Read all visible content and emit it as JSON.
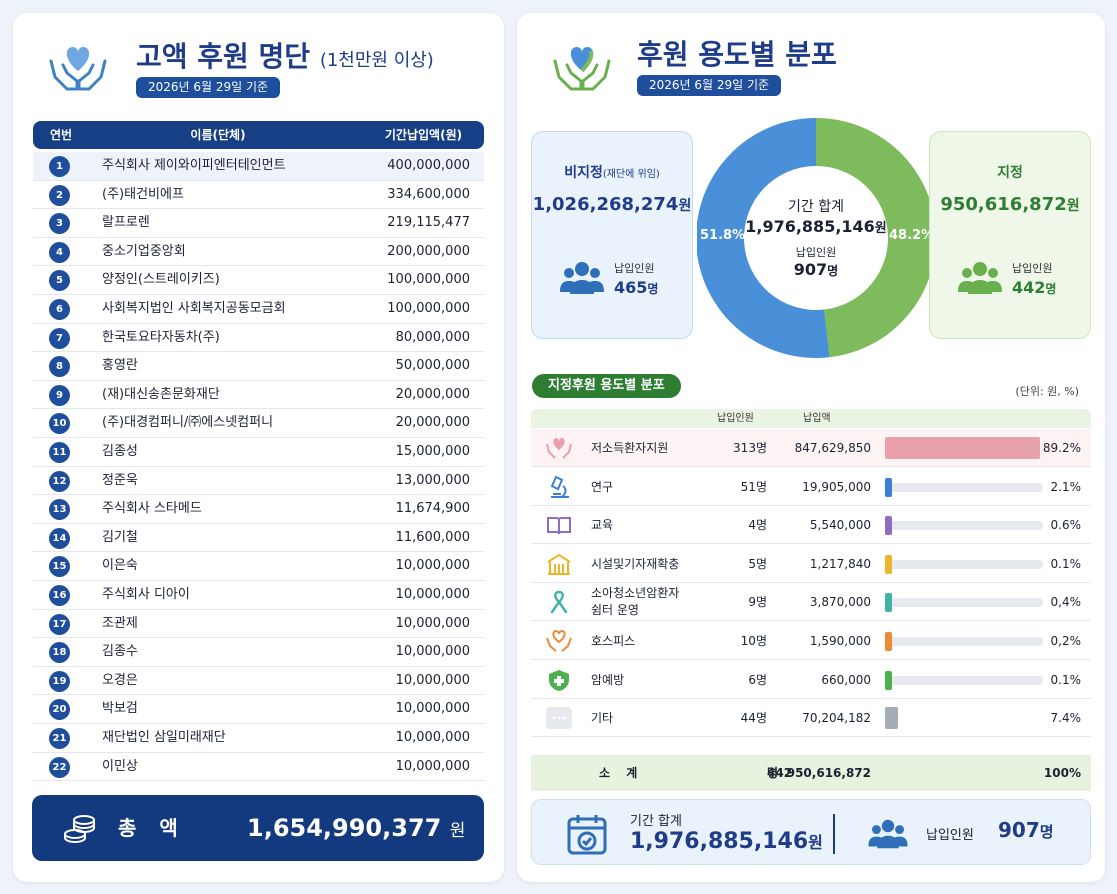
{
  "left": {
    "title": "고액 후원 명단",
    "subtitle": "(1천만원 이상)",
    "date": "2026년 6월 29일 기준",
    "headers": {
      "no": "연번",
      "name": "이름(단체)",
      "amount": "기간납입액(원)"
    },
    "rows": [
      {
        "no": "1",
        "name": "주식회사 제이와이피엔터테인먼트",
        "amount": "400,000,000"
      },
      {
        "no": "2",
        "name": "(주)태건비에프",
        "amount": "334,600,000"
      },
      {
        "no": "3",
        "name": "랄프로렌",
        "amount": "219,115,477"
      },
      {
        "no": "4",
        "name": "중소기업중앙회",
        "amount": "200,000,000"
      },
      {
        "no": "5",
        "name": "양정인(스트레이키즈)",
        "amount": "100,000,000"
      },
      {
        "no": "6",
        "name": "사회복지법인 사회복지공동모금회",
        "amount": "100,000,000"
      },
      {
        "no": "7",
        "name": "한국토요타자동차(주)",
        "amount": "80,000,000"
      },
      {
        "no": "8",
        "name": "홍영란",
        "amount": "50,000,000"
      },
      {
        "no": "9",
        "name": "(재)대신송촌문화재단",
        "amount": "20,000,000"
      },
      {
        "no": "10",
        "name": "(주)대경컴퍼니/㈜에스넷컴퍼니",
        "amount": "20,000,000"
      },
      {
        "no": "11",
        "name": "김종성",
        "amount": "15,000,000"
      },
      {
        "no": "12",
        "name": "정준욱",
        "amount": "13,000,000"
      },
      {
        "no": "13",
        "name": "주식회사 스타메드",
        "amount": "11,674,900"
      },
      {
        "no": "14",
        "name": "김기철",
        "amount": "11,600,000"
      },
      {
        "no": "15",
        "name": "이은숙",
        "amount": "10,000,000"
      },
      {
        "no": "16",
        "name": "주식회사 디아이",
        "amount": "10,000,000"
      },
      {
        "no": "17",
        "name": "조관제",
        "amount": "10,000,000"
      },
      {
        "no": "18",
        "name": "김종수",
        "amount": "10,000,000"
      },
      {
        "no": "19",
        "name": "오경은",
        "amount": "10,000,000"
      },
      {
        "no": "20",
        "name": "박보검",
        "amount": "10,000,000"
      },
      {
        "no": "21",
        "name": "재단법인 삼일미래재단",
        "amount": "10,000,000"
      },
      {
        "no": "22",
        "name": "이민상",
        "amount": "10,000,000"
      }
    ],
    "total": {
      "label": "총 액",
      "value": "1,654,990,377",
      "unit": "원"
    }
  },
  "right": {
    "title": "후원 용도별 분포",
    "date": "2026년 6월 29일 기준",
    "nondesignated": {
      "title": "비지정",
      "note": "(재단에 위임)",
      "amount": "1,026,268,274",
      "unit": "원",
      "people_label": "납입인원",
      "people": "465",
      "people_unit": "명",
      "pct": "51.8%",
      "color": "#4a90d9"
    },
    "designated": {
      "title": "지정",
      "amount": "950,616,872",
      "unit": "원",
      "people_label": "납입인원",
      "people": "442",
      "people_unit": "명",
      "pct": "48.2%",
      "color": "#7dbb5c"
    },
    "donut_center": {
      "label": "기간 합계",
      "amount": "1,976,885,146",
      "unit": "원",
      "people_label": "납입인원",
      "people": "907",
      "people_unit": "명"
    },
    "section_title": "지정후원 용도별 분포",
    "unit_note": "(단위: 원, %)",
    "col_people": "납입인원",
    "col_amount": "납입액",
    "uses": [
      {
        "icon": "heart-hands-icon",
        "name": "저소득환자지원",
        "people": "313",
        "unit": "명",
        "amount": "847,629,850",
        "pct": "89.2%",
        "share": 0.892,
        "color": "#e8a0aa"
      },
      {
        "icon": "microscope-icon",
        "name": "연구",
        "people": "51",
        "unit": "명",
        "amount": "19,905,000",
        "pct": "2.1%",
        "share": 0.021,
        "color": "#3d7dd8"
      },
      {
        "icon": "book-icon",
        "name": "교육",
        "people": "4",
        "unit": "명",
        "amount": "5,540,000",
        "pct": "0.6%",
        "share": 0.006,
        "color": "#8e6cc0"
      },
      {
        "icon": "building-icon",
        "name": "시설및기자재확충",
        "people": "5",
        "unit": "명",
        "amount": "1,217,840",
        "pct": "0.1%",
        "share": 0.001,
        "color": "#f0b429"
      },
      {
        "icon": "ribbon-icon",
        "name": "소아청소년암환자\n쉼터 운영",
        "people": "9",
        "unit": "명",
        "amount": "3,870,000",
        "pct": "0,4%",
        "share": 0.004,
        "color": "#3fb3a8"
      },
      {
        "icon": "hospice-heart-icon",
        "name": "호스피스",
        "people": "10",
        "unit": "명",
        "amount": "1,590,000",
        "pct": "0,2%",
        "share": 0.002,
        "color": "#ec8a35"
      },
      {
        "icon": "shield-icon",
        "name": "암예방",
        "people": "6",
        "unit": "명",
        "amount": "660,000",
        "pct": "0.1%",
        "share": 0.001,
        "color": "#4caf50"
      },
      {
        "icon": "more-icon",
        "name": "기타",
        "people": "44",
        "unit": "명",
        "amount": "70,204,182",
        "pct": "7.4%",
        "share": 0.074,
        "color": "#a4acb6"
      }
    ],
    "subtotal": {
      "label": "소 계",
      "people": "442",
      "unit": "명",
      "amount": "950,616,872",
      "pct": "100%"
    },
    "bottom": {
      "label": "기간 합계",
      "amount": "1,976,885,146",
      "unit": "원",
      "people_label": "납입인원",
      "people": "907",
      "people_unit": "명"
    }
  }
}
